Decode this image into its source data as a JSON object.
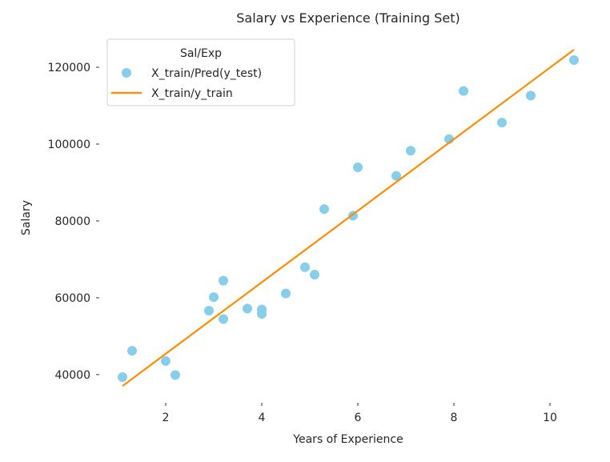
{
  "chart_data": {
    "type": "scatter",
    "title": "Salary vs Experience (Training Set)",
    "xlabel": "Years of Experience",
    "ylabel": "Salary",
    "xlim": [
      0.55,
      11.05
    ],
    "ylim": [
      33300,
      131250
    ],
    "xticks": [
      2,
      4,
      6,
      8,
      10
    ],
    "yticks": [
      40000,
      60000,
      80000,
      100000,
      120000
    ],
    "grid": false,
    "legend": {
      "title": "Sal/Exp",
      "placement": "top-left",
      "entries": [
        "X_train/Pred(y_test)",
        "X_train/y_train"
      ]
    },
    "colors": {
      "scatter": "#87ceeb",
      "line": "#ff8c00"
    },
    "series": [
      {
        "name": "X_train/Pred(y_test)",
        "kind": "scatter",
        "x": [
          1.1,
          1.3,
          2.0,
          2.2,
          2.9,
          3.0,
          3.2,
          3.2,
          3.7,
          4.0,
          4.0,
          4.5,
          4.9,
          5.1,
          5.3,
          5.9,
          6.0,
          6.8,
          7.1,
          7.9,
          8.2,
          9.0,
          9.6,
          10.5
        ],
        "y": [
          39343,
          46205,
          43525,
          39891,
          56642,
          60150,
          64445,
          54445,
          57189,
          56957,
          55794,
          61111,
          67938,
          66029,
          83088,
          81363,
          93940,
          91738,
          98273,
          101302,
          113812,
          105582,
          112635,
          121872
        ]
      },
      {
        "name": "X_train/y_train",
        "kind": "line",
        "x": [
          1.1,
          10.5
        ],
        "y": [
          37023,
          124556
        ]
      }
    ]
  }
}
